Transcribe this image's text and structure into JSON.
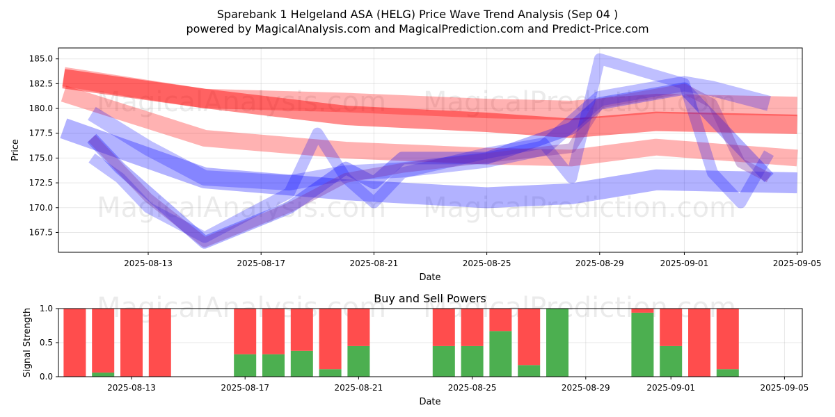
{
  "header": {
    "title": "Sparebank 1 Helgeland ASA (HELG) Price Wave Trend Analysis (Sep 04 )",
    "subtitle": "powered by MagicalAnalysis.com and MagicalPrediction.com and Predict-Price.com"
  },
  "watermarks": [
    "MagicalAnalysis.com",
    "MagicalPrediction.com"
  ],
  "colors": {
    "red": "#ff0000",
    "blue": "#0000ff",
    "buy": "#4caf50",
    "sell": "#ff4d4d"
  },
  "chart_data": [
    {
      "type": "line",
      "title": "",
      "xlabel": "Date",
      "ylabel": "Price",
      "ylim": [
        165.5,
        186.1
      ],
      "x_ticks": [
        "2025-08-13",
        "2025-08-17",
        "2025-08-21",
        "2025-08-25",
        "2025-08-29",
        "2025-09-01",
        "2025-09-05"
      ],
      "y_ticks": [
        "167.5",
        "170.0",
        "172.5",
        "175.0",
        "177.5",
        "180.0",
        "182.5",
        "185.0"
      ],
      "y_tick_values": [
        167.5,
        170.0,
        172.5,
        175.0,
        177.5,
        180.0,
        182.5,
        185.0
      ],
      "grid": true,
      "series": [
        {
          "name": "red-band-upper",
          "color": "red",
          "alpha": 0.3,
          "width": 28,
          "x": [
            "2025-08-10",
            "2025-08-15",
            "2025-08-20",
            "2025-08-25",
            "2025-08-28",
            "2025-08-31",
            "2025-09-05"
          ],
          "values": [
            183.2,
            181.0,
            180.6,
            180.0,
            179.8,
            180.5,
            180.2
          ]
        },
        {
          "name": "red-band-mid",
          "color": "red",
          "alpha": 0.45,
          "width": 28,
          "x": [
            "2025-08-10",
            "2025-08-15",
            "2025-08-20",
            "2025-08-25",
            "2025-08-28",
            "2025-08-31",
            "2025-09-05"
          ],
          "values": [
            183.0,
            181.0,
            179.3,
            178.6,
            178.0,
            178.7,
            178.4
          ]
        },
        {
          "name": "red-band-lower",
          "color": "red",
          "alpha": 0.3,
          "width": 24,
          "x": [
            "2025-08-10",
            "2025-08-15",
            "2025-08-20",
            "2025-08-25",
            "2025-08-28",
            "2025-08-31",
            "2025-09-05"
          ],
          "values": [
            181.5,
            177.0,
            175.8,
            175.2,
            175.0,
            176.1,
            175.0
          ]
        },
        {
          "name": "blue-band-lower",
          "color": "blue",
          "alpha": 0.3,
          "width": 30,
          "x": [
            "2025-08-10",
            "2025-08-15",
            "2025-08-20",
            "2025-08-25",
            "2025-08-28",
            "2025-08-31",
            "2025-09-05"
          ],
          "values": [
            178.0,
            173.0,
            171.8,
            171.0,
            171.4,
            172.8,
            172.5
          ]
        },
        {
          "name": "blue-band-mid",
          "color": "blue",
          "alpha": 0.25,
          "width": 22,
          "x": [
            "2025-08-11",
            "2025-08-13",
            "2025-08-15",
            "2025-08-18",
            "2025-08-20",
            "2025-08-22",
            "2025-08-25",
            "2025-08-27",
            "2025-08-29",
            "2025-09-01",
            "2025-09-02",
            "2025-09-04"
          ],
          "values": [
            179.5,
            176.0,
            173.0,
            172.5,
            173.5,
            173.8,
            174.8,
            176.0,
            181.0,
            182.5,
            182.0,
            180.5
          ]
        },
        {
          "name": "blue-wave-1",
          "color": "blue",
          "alpha": 0.25,
          "width": 16,
          "x": [
            "2025-08-11",
            "2025-08-12",
            "2025-08-13",
            "2025-08-15",
            "2025-08-18",
            "2025-08-19",
            "2025-08-20",
            "2025-08-21",
            "2025-08-22",
            "2025-08-25",
            "2025-08-27",
            "2025-08-28",
            "2025-08-29",
            "2025-09-01",
            "2025-09-02",
            "2025-09-03",
            "2025-09-04"
          ],
          "values": [
            175.0,
            173.0,
            170.0,
            167.0,
            171.5,
            177.5,
            173.0,
            170.5,
            173.5,
            175.5,
            176.5,
            173.0,
            185.0,
            182.5,
            173.5,
            170.5,
            175.5
          ]
        },
        {
          "name": "blue-wave-2",
          "color": "blue",
          "alpha": 0.3,
          "width": 18,
          "x": [
            "2025-08-11",
            "2025-08-12",
            "2025-08-15",
            "2025-08-18",
            "2025-08-20",
            "2025-08-21",
            "2025-08-22",
            "2025-08-25",
            "2025-08-27",
            "2025-08-28",
            "2025-08-29",
            "2025-09-01",
            "2025-09-02",
            "2025-09-04"
          ],
          "values": [
            177.0,
            174.0,
            166.5,
            170.0,
            174.0,
            172.5,
            175.0,
            175.0,
            177.0,
            178.0,
            180.5,
            182.0,
            179.0,
            173.0
          ]
        },
        {
          "name": "purple-wave",
          "color": "purple",
          "alpha": 0.35,
          "width": 14,
          "x": [
            "2025-08-11",
            "2025-08-13",
            "2025-08-15",
            "2025-08-18",
            "2025-08-20",
            "2025-08-22",
            "2025-08-25",
            "2025-08-28",
            "2025-08-29",
            "2025-09-01",
            "2025-09-02",
            "2025-09-03",
            "2025-09-04"
          ],
          "values": [
            177.0,
            171.0,
            166.5,
            170.0,
            173.0,
            174.0,
            175.0,
            176.0,
            180.5,
            182.0,
            180.5,
            174.5,
            173.0
          ]
        }
      ]
    },
    {
      "type": "bar",
      "title": "Buy and Sell Powers",
      "xlabel": "Date",
      "ylabel": "Signal Strength",
      "ylim": [
        0,
        1
      ],
      "x_ticks": [
        "2025-08-13",
        "2025-08-17",
        "2025-08-21",
        "2025-08-25",
        "2025-08-29",
        "2025-09-01",
        "2025-09-05"
      ],
      "y_ticks": [
        "0.0",
        "0.5",
        "1.0"
      ],
      "y_tick_values": [
        0.0,
        0.5,
        1.0
      ],
      "grid": true,
      "categories": [
        "2025-08-12",
        "2025-08-13",
        "2025-08-14",
        "2025-08-15",
        "2025-08-18",
        "2025-08-19",
        "2025-08-20",
        "2025-08-21",
        "2025-08-22",
        "2025-08-25",
        "2025-08-26",
        "2025-08-27",
        "2025-08-28",
        "2025-08-29",
        "2025-09-01",
        "2025-09-02",
        "2025-09-03",
        "2025-09-04"
      ],
      "series": [
        {
          "name": "Buy",
          "color": "buy",
          "values": [
            0.0,
            0.06,
            0.0,
            0.0,
            0.33,
            0.33,
            0.38,
            0.11,
            0.45,
            0.45,
            0.45,
            0.67,
            0.17,
            1.0,
            0.94,
            0.45,
            0.0,
            0.11
          ]
        },
        {
          "name": "Sell",
          "color": "sell",
          "values": [
            1.0,
            0.94,
            1.0,
            1.0,
            0.67,
            0.67,
            0.62,
            0.89,
            0.55,
            0.55,
            0.55,
            0.33,
            0.83,
            0.0,
            0.06,
            0.55,
            1.0,
            0.89
          ]
        }
      ]
    }
  ]
}
